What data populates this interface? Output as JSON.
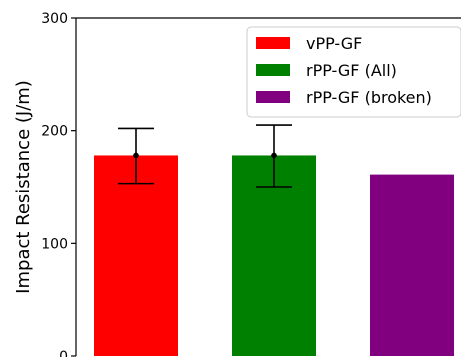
{
  "chart_data": {
    "type": "bar",
    "title": "",
    "xlabel": "",
    "ylabel": "Impact Resistance (J/m)",
    "ylim": [
      0,
      300
    ],
    "yticks": [
      0,
      100,
      200,
      300
    ],
    "grid": false,
    "legend_position": "top-right",
    "series": [
      {
        "name": "vPP-GF",
        "value": 178,
        "error": [
          153,
          202
        ],
        "color": "#ff0000"
      },
      {
        "name": "rPP-GF (All)",
        "value": 178,
        "error": [
          150,
          205
        ],
        "color": "#008000"
      },
      {
        "name": "rPP-GF (broken)",
        "value": 161,
        "error": null,
        "color": "#800080"
      }
    ]
  }
}
